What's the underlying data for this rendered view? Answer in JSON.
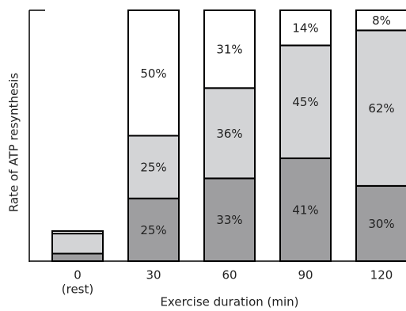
{
  "chart_data": {
    "type": "stacked-bar",
    "y_label": "Rate of ATP resynthesis",
    "x_label": "Exercise duration (min)",
    "categories": [
      "0",
      "30",
      "60",
      "90",
      "120"
    ],
    "category_sublabels": [
      "(rest)",
      null,
      null,
      null,
      null
    ],
    "ylim": [
      0,
      100
    ],
    "series": [
      {
        "color": "#9e9ea0",
        "values": [
          3,
          25,
          33,
          41,
          30
        ],
        "value_labels": [
          null,
          "25%",
          "33%",
          "41%",
          "30%"
        ]
      },
      {
        "color": "#d3d4d6",
        "values": [
          8,
          25,
          36,
          45,
          62
        ],
        "value_labels": [
          null,
          "25%",
          "36%",
          "45%",
          "62%"
        ]
      },
      {
        "color": "#ffffff",
        "values": [
          1,
          50,
          31,
          14,
          8
        ],
        "value_labels": [
          null,
          "50%",
          "31%",
          "14%",
          "8%"
        ]
      }
    ]
  }
}
